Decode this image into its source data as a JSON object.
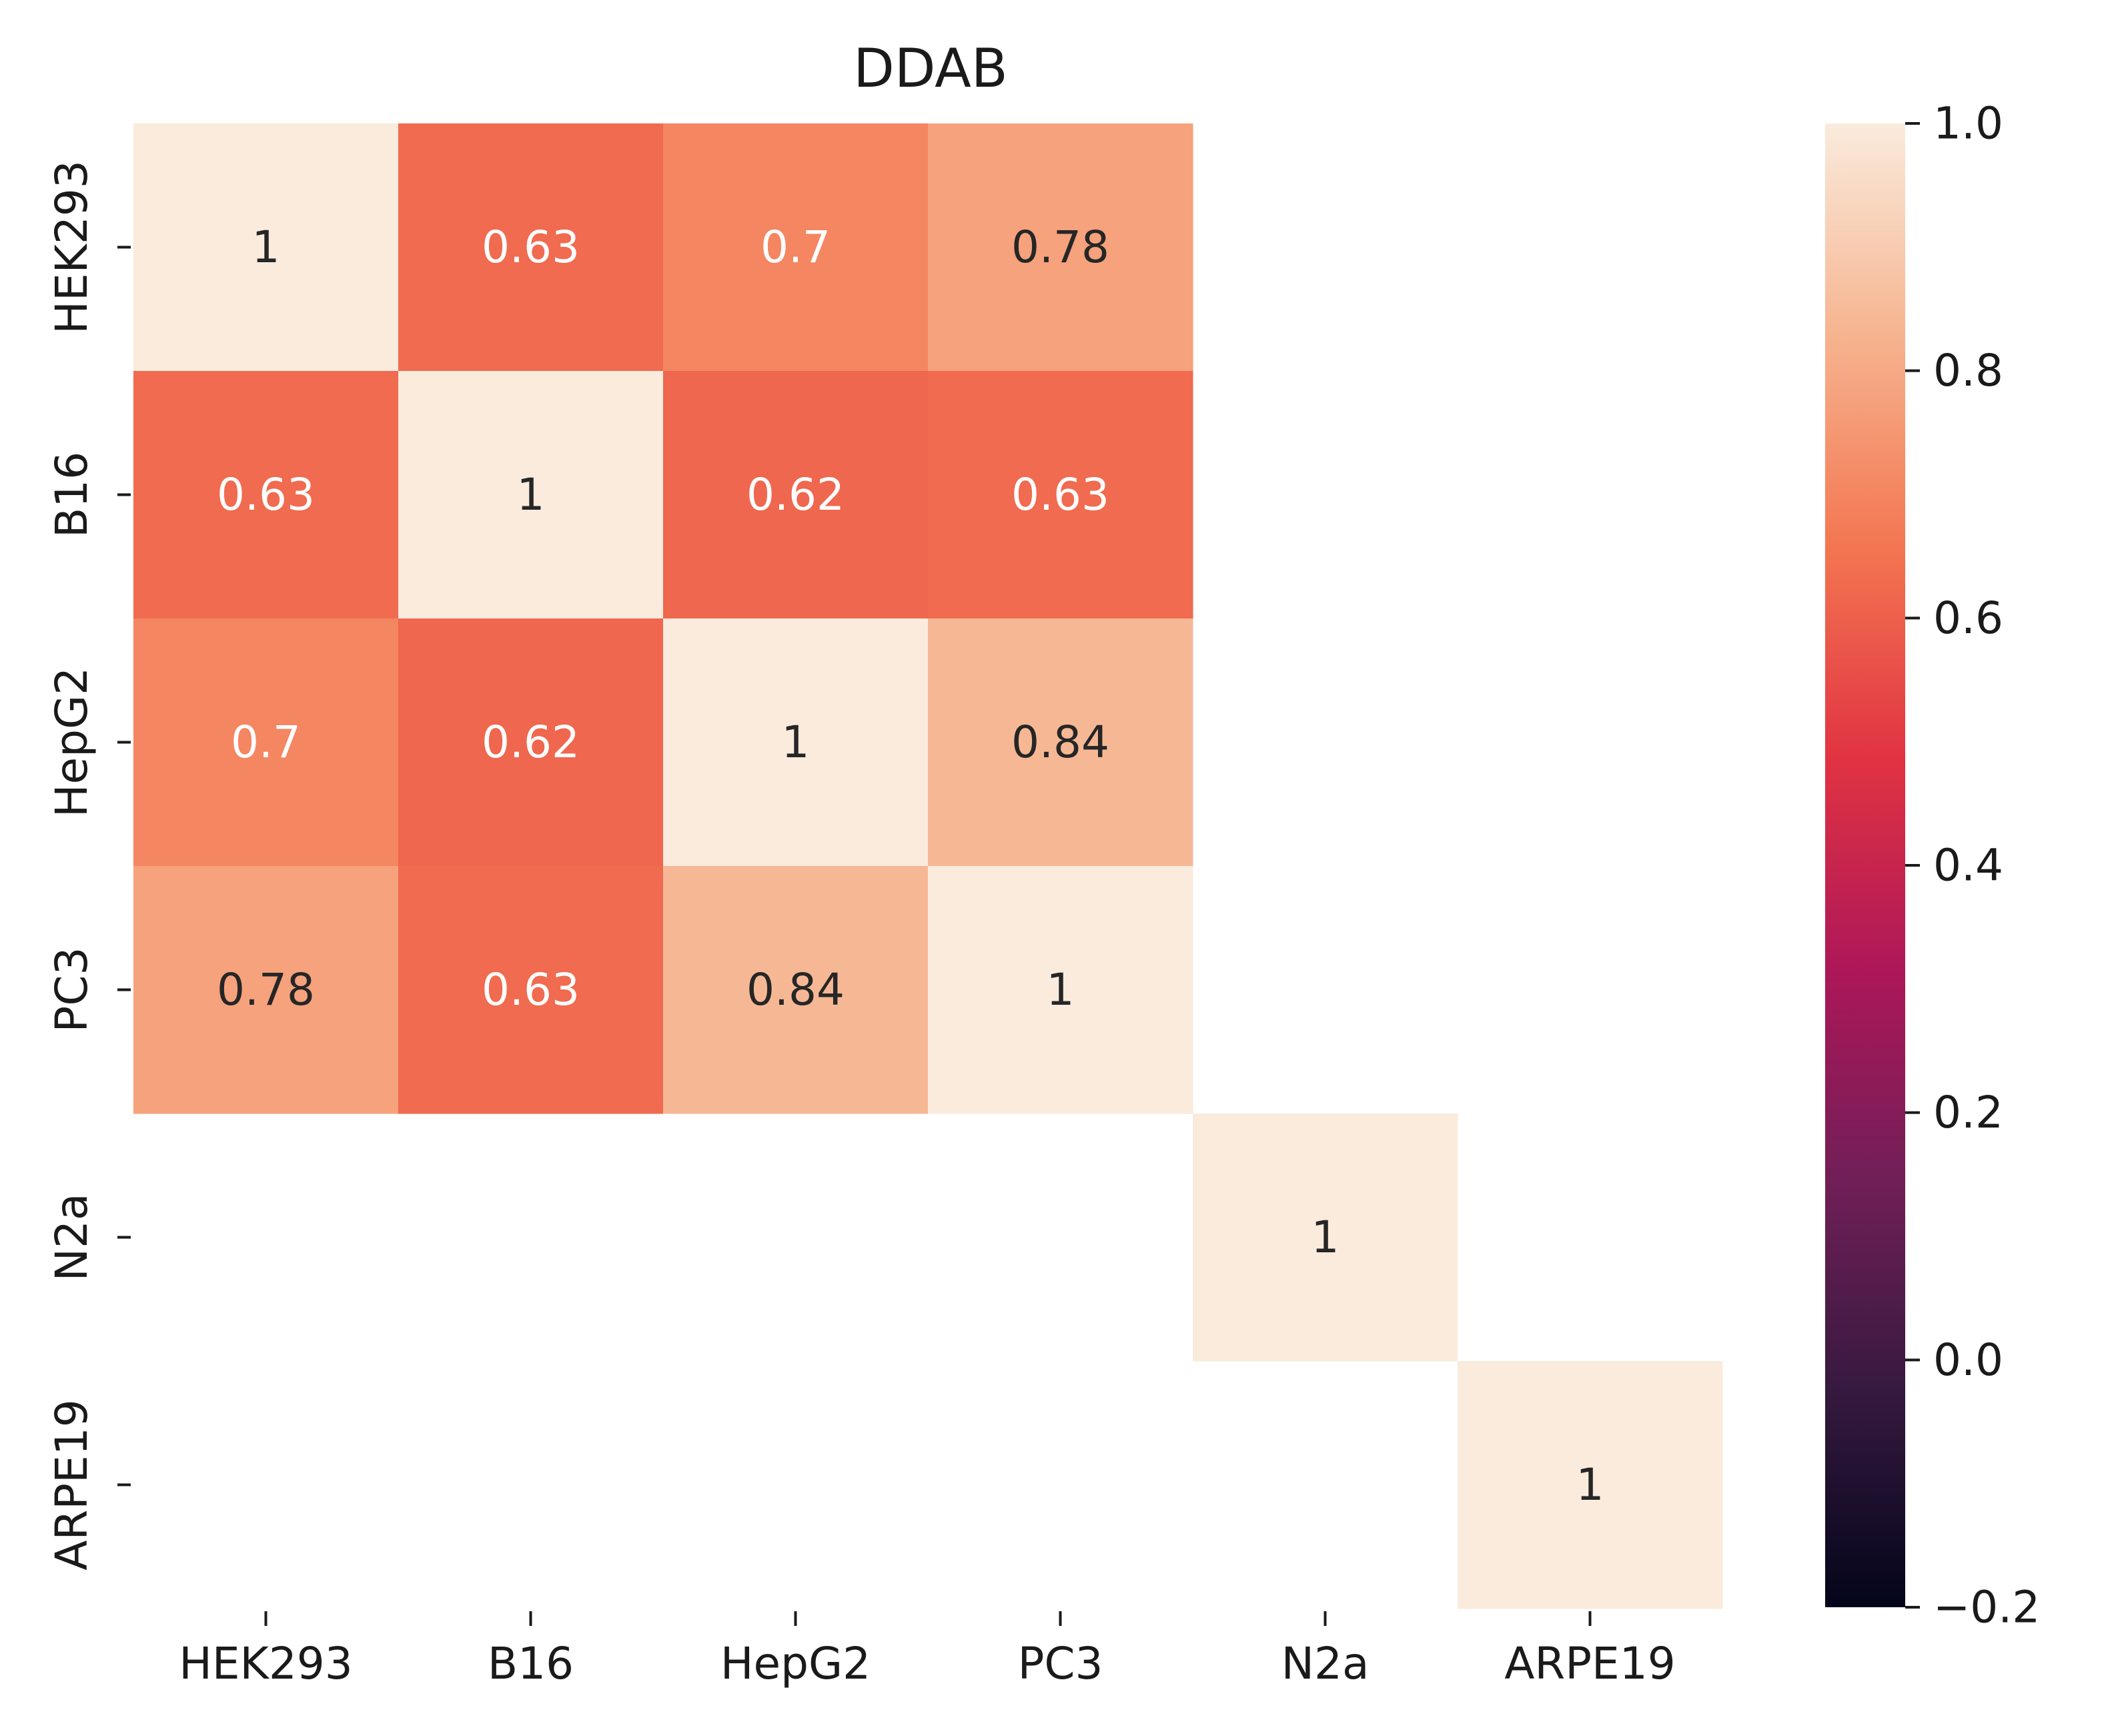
{
  "chart_data": {
    "type": "heatmap",
    "title": "DDAB",
    "xlabel": "",
    "ylabel": "",
    "x_categories": [
      "HEK293",
      "B16",
      "HepG2",
      "PC3",
      "N2a",
      "ARPE19"
    ],
    "y_categories": [
      "HEK293",
      "B16",
      "HepG2",
      "PC3",
      "N2a",
      "ARPE19"
    ],
    "values": [
      [
        1,
        0.63,
        0.7,
        0.78,
        null,
        null
      ],
      [
        0.63,
        1,
        0.62,
        0.63,
        null,
        null
      ],
      [
        0.7,
        0.62,
        1,
        0.84,
        null,
        null
      ],
      [
        0.78,
        0.63,
        0.84,
        1,
        null,
        null
      ],
      [
        null,
        null,
        null,
        null,
        1,
        null
      ],
      [
        null,
        null,
        null,
        null,
        null,
        1
      ]
    ],
    "value_labels": [
      [
        "1",
        "0.63",
        "0.7",
        "0.78",
        "",
        ""
      ],
      [
        "0.63",
        "1",
        "0.62",
        "0.63",
        "",
        ""
      ],
      [
        "0.7",
        "0.62",
        "1",
        "0.84",
        "",
        ""
      ],
      [
        "0.78",
        "0.63",
        "0.84",
        "1",
        "",
        ""
      ],
      [
        "",
        "",
        "",
        "",
        "1",
        ""
      ],
      [
        "",
        "",
        "",
        "",
        "",
        "1"
      ]
    ],
    "colorbar": {
      "range": [
        -0.2,
        1.0
      ],
      "ticks": [
        1.0,
        0.8,
        0.6,
        0.4,
        0.2,
        0.0,
        -0.2
      ],
      "tick_labels": [
        "1.0",
        "0.8",
        "0.6",
        "0.4",
        "0.2",
        "0.0",
        "−0.2"
      ],
      "colormap": "rocket",
      "stops": [
        "#03051a",
        "#35193e",
        "#701f57",
        "#ad1759",
        "#e13342",
        "#f37651",
        "#f6b48f",
        "#faebdd"
      ]
    },
    "grid": false,
    "legend": "colorbar-right"
  }
}
